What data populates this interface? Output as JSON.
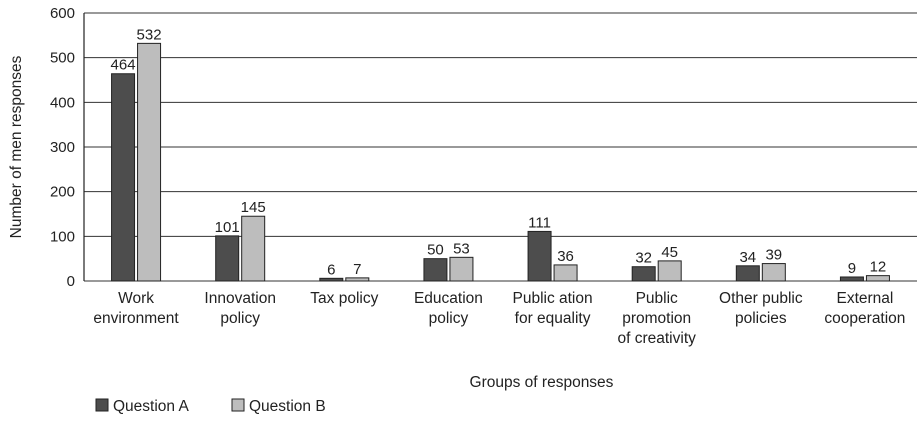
{
  "chart_data": {
    "type": "bar",
    "title": "",
    "xlabel": "Groups of responses",
    "ylabel": "Number of men responses",
    "ylim": [
      0,
      600
    ],
    "yticks": [
      0,
      100,
      200,
      300,
      400,
      500,
      600
    ],
    "grid": true,
    "legend": "bottom-left",
    "categories": [
      [
        "Work",
        "environment"
      ],
      [
        "Innovation",
        "policy"
      ],
      [
        "Tax policy"
      ],
      [
        "Education",
        "policy"
      ],
      [
        "Public ation",
        "for equality"
      ],
      [
        "Public",
        "promotion",
        "of creativity"
      ],
      [
        "Other public",
        "policies"
      ],
      [
        "External",
        "cooperation"
      ]
    ],
    "series": [
      {
        "name": "Question A",
        "color": "#4d4d4d",
        "values": [
          464,
          101,
          6,
          50,
          111,
          32,
          34,
          9
        ]
      },
      {
        "name": "Question B",
        "color": "#bdbdbd",
        "values": [
          532,
          145,
          7,
          53,
          36,
          45,
          39,
          12
        ]
      }
    ]
  }
}
